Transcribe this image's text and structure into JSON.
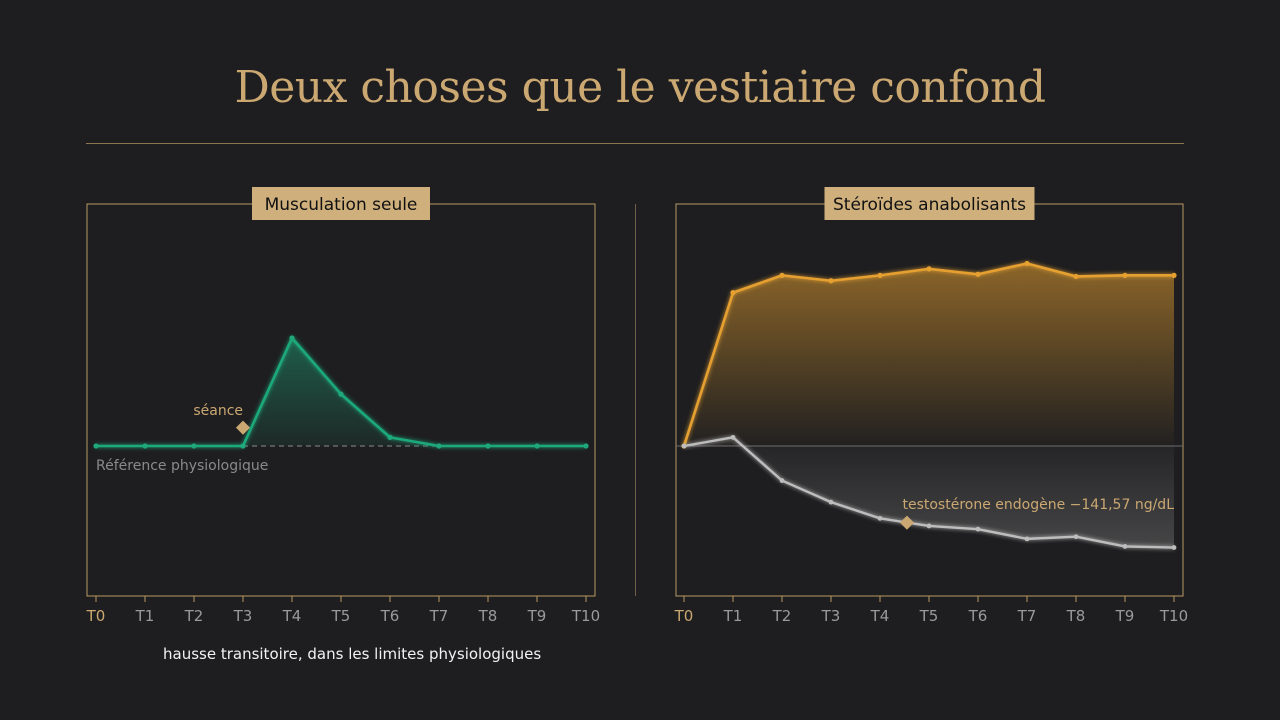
{
  "title": "Deux choses que le vestiaire confond",
  "colors": {
    "frame": "#b89a62",
    "label_bg": "#cfb07d",
    "accent": "#cba872",
    "green": "#1fa97a",
    "orange": "#e6a030",
    "grey": "#bdbdbd"
  },
  "caption": "hausse transitoire, dans les limites physiologiques",
  "chart_data": [
    {
      "type": "area",
      "title": "Musculation seule",
      "categories": [
        "T0",
        "T1",
        "T2",
        "T3",
        "T4",
        "T5",
        "T6",
        "T7",
        "T8",
        "T9",
        "T10"
      ],
      "ylim": [
        -1.4,
        2.2
      ],
      "series": [
        {
          "values": [
            0,
            0,
            0,
            0,
            1.0,
            0.48,
            0.08,
            0,
            0,
            0,
            0
          ]
        }
      ],
      "baseline": {
        "value": 0,
        "label": "Référence physiologique"
      },
      "annotations": [
        {
          "label": "séance",
          "x": 3,
          "y": 0.17
        }
      ]
    },
    {
      "type": "area",
      "title": "Stéroïdes anabolisants",
      "categories": [
        "T0",
        "T1",
        "T2",
        "T3",
        "T4",
        "T5",
        "T6",
        "T7",
        "T8",
        "T9",
        "T10"
      ],
      "ylim": [
        -1.4,
        2.2
      ],
      "series": [
        {
          "values": [
            0,
            1.42,
            1.58,
            1.53,
            1.58,
            1.64,
            1.59,
            1.69,
            1.57,
            1.58,
            1.58
          ]
        },
        {
          "values": [
            0,
            0.08,
            -0.32,
            -0.52,
            -0.67,
            -0.74,
            -0.77,
            -0.86,
            -0.84,
            -0.93,
            -0.94
          ]
        }
      ],
      "baseline": {
        "value": 0
      },
      "annotations": [
        {
          "label": "testostérone endogène −141,57 ng/dL",
          "x": 4.55,
          "y": -0.71
        }
      ]
    }
  ]
}
